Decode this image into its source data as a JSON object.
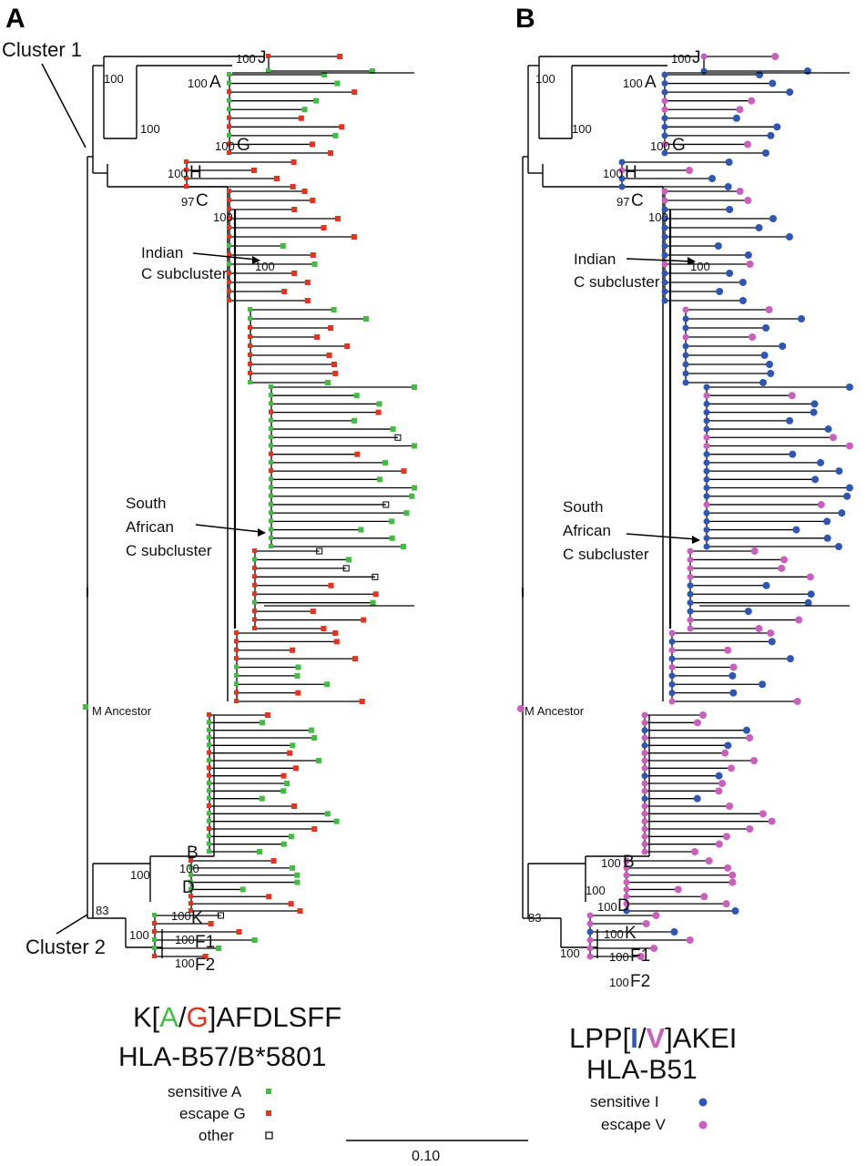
{
  "colors": {
    "branch": "#000000",
    "sensitive_A": "#3fbf3f",
    "escape_G": "#e8321e",
    "sensitive_I": "#2f56b5",
    "escape_V": "#cc5ebd",
    "other_box": "#000000"
  },
  "panel_a": {
    "letter": "A",
    "cluster1": "Cluster 1",
    "cluster2": "Cluster 2",
    "clades": {
      "J": "J",
      "A": "A",
      "G": "G",
      "H": "H",
      "C": "C",
      "B": "B",
      "D": "D",
      "K": "K",
      "F1": "F1",
      "F2": "F2"
    },
    "bootstrap": {
      "j": "100",
      "a": "100",
      "g": "100",
      "root": "100",
      "ag": "100",
      "h": "100",
      "c": "97",
      "c2": "100",
      "indian": "100",
      "b": "100",
      "bd": "100",
      "d": "100",
      "k": "100",
      "f1": "100",
      "f2": "100",
      "c83": "83"
    },
    "indian_line1": "Indian",
    "indian_line2": "C subcluster",
    "sa_line1": "South",
    "sa_line2": "African",
    "sa_line3": "C subcluster",
    "ancestor": "M Ancestor",
    "motif_prefix": "K[",
    "motif_a": "A",
    "motif_slash": "/",
    "motif_g": "G",
    "motif_suffix": "]AFDLSFF",
    "hla": "HLA-B57/B*5801",
    "legend": {
      "sensitive": "sensitive A",
      "escape": "escape G",
      "other": "other"
    }
  },
  "panel_b": {
    "letter": "B",
    "clades": {
      "J": "J",
      "A": "A",
      "G": "G",
      "H": "H",
      "C": "C",
      "B": "B",
      "D": "D",
      "K": "K",
      "F1": "F1",
      "F2": "F2"
    },
    "bootstrap": {
      "j": "100",
      "a": "100",
      "g": "100",
      "root": "100",
      "ag": "100",
      "h": "100",
      "c": "97",
      "c2": "100",
      "indian": "100",
      "b": "100",
      "bd": "100",
      "d": "100",
      "k": "100",
      "f1": "100",
      "f2": "100",
      "c83": "83"
    },
    "indian_line1": "Indian",
    "indian_line2": "C subcluster",
    "sa_line1": "South",
    "sa_line2": "African",
    "sa_line3": "C subcluster",
    "ancestor": "M Ancestor",
    "motif_prefix": "LPP[",
    "motif_i": "I",
    "motif_slash": "/",
    "motif_v": "V",
    "motif_suffix": "]AKEI",
    "hla": "HLA-B51",
    "legend": {
      "sensitive": "sensitive I",
      "escape": "escape V"
    }
  },
  "scale_bar": {
    "label": "0.10"
  }
}
